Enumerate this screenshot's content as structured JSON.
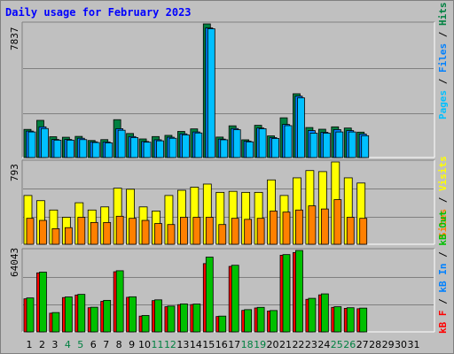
{
  "title": "Daily usage for February 2023",
  "panels": {
    "top_max": "7837",
    "middle_max": "793",
    "bottom_max": "64043"
  },
  "right_labels": {
    "top": [
      "Pages",
      "Files",
      "Hits"
    ],
    "middle": [
      "Sites",
      "Visits"
    ],
    "bottom": [
      "kB F",
      "kB In",
      "kB Out"
    ],
    "separator": " / "
  },
  "colors": {
    "hits": "#008040",
    "files": "#0080ff",
    "pages": "#00c0ff",
    "visits": "#ffff00",
    "sites": "#ff8000",
    "kbf": "#ff0000",
    "kbin": "#0080ff",
    "kbout": "#00c000",
    "weekend_label": "#008040",
    "title": "#0000ff"
  },
  "chart_data": [
    {
      "type": "bar",
      "title": "Daily usage for February 2023",
      "categories": [
        "1",
        "2",
        "3",
        "4",
        "5",
        "6",
        "7",
        "8",
        "9",
        "10",
        "11",
        "12",
        "13",
        "14",
        "15",
        "16",
        "17",
        "18",
        "19",
        "20",
        "21",
        "22",
        "23",
        "24",
        "25",
        "26",
        "27",
        "28",
        "29",
        "30",
        "31"
      ],
      "weekend_days": [
        "4",
        "5",
        "11",
        "12",
        "18",
        "19",
        "25",
        "26"
      ],
      "ylim": [
        0,
        7837
      ],
      "series": [
        {
          "name": "Hits",
          "values": [
            1650,
            2180,
            1220,
            1190,
            1240,
            1000,
            1050,
            2220,
            1410,
            1090,
            1230,
            1300,
            1530,
            1680,
            7837,
            1200,
            1860,
            1040,
            1890,
            1270,
            2330,
            3740,
            1760,
            1660,
            1800,
            1730,
            1490,
            null,
            null,
            null,
            null
          ]
        },
        {
          "name": "Files",
          "values": [
            1550,
            1800,
            1060,
            1060,
            1130,
            920,
            910,
            1690,
            1230,
            940,
            1040,
            1190,
            1390,
            1500,
            7600,
            1080,
            1700,
            960,
            1730,
            1170,
            1940,
            3600,
            1580,
            1480,
            1640,
            1580,
            1380,
            null,
            null,
            null,
            null
          ]
        },
        {
          "name": "Pages",
          "values": [
            1500,
            1700,
            1020,
            1020,
            1050,
            880,
            860,
            1600,
            1170,
            900,
            980,
            1130,
            1330,
            1440,
            7550,
            1040,
            1630,
            920,
            1690,
            1120,
            1870,
            3500,
            1430,
            1430,
            1500,
            1500,
            1280,
            null,
            null,
            null,
            null
          ]
        }
      ]
    },
    {
      "type": "bar",
      "categories": [
        "1",
        "2",
        "3",
        "4",
        "5",
        "6",
        "7",
        "8",
        "9",
        "10",
        "11",
        "12",
        "13",
        "14",
        "15",
        "16",
        "17",
        "18",
        "19",
        "20",
        "21",
        "22",
        "23",
        "24",
        "25",
        "26",
        "27",
        "28",
        "29",
        "30",
        "31"
      ],
      "ylim": [
        0,
        793
      ],
      "series": [
        {
          "name": "Visits",
          "values": [
            470,
            420,
            330,
            260,
            400,
            330,
            360,
            540,
            530,
            360,
            320,
            470,
            520,
            550,
            580,
            500,
            510,
            500,
            500,
            620,
            470,
            640,
            710,
            700,
            793,
            640,
            590,
            null,
            null,
            null,
            null
          ]
        },
        {
          "name": "Sites",
          "values": [
            250,
            230,
            150,
            160,
            260,
            210,
            210,
            270,
            250,
            230,
            200,
            190,
            260,
            260,
            260,
            190,
            250,
            240,
            250,
            320,
            310,
            330,
            370,
            340,
            430,
            260,
            250,
            null,
            null,
            null,
            null
          ]
        }
      ]
    },
    {
      "type": "bar",
      "categories": [
        "1",
        "2",
        "3",
        "4",
        "5",
        "6",
        "7",
        "8",
        "9",
        "10",
        "11",
        "12",
        "13",
        "14",
        "15",
        "16",
        "17",
        "18",
        "19",
        "20",
        "21",
        "22",
        "23",
        "24",
        "25",
        "26",
        "27",
        "28",
        "29",
        "30",
        "31"
      ],
      "ylim": [
        0,
        64043
      ],
      "series": [
        {
          "name": "kB F",
          "values": [
            null,
            null,
            null,
            null,
            null,
            null,
            null,
            null,
            null,
            null,
            null,
            null,
            null,
            null,
            null,
            null,
            null,
            null,
            null,
            null,
            null,
            null,
            null,
            null,
            null,
            null,
            null,
            null,
            null,
            null,
            null
          ]
        },
        {
          "name": "kB In",
          "values": [
            null,
            null,
            null,
            null,
            null,
            null,
            null,
            null,
            null,
            null,
            null,
            null,
            null,
            null,
            null,
            null,
            null,
            null,
            null,
            null,
            null,
            null,
            null,
            null,
            null,
            null,
            null,
            null,
            null,
            null,
            null
          ]
        },
        {
          "name": "kB Out",
          "values": [
            26700,
            47000,
            15200,
            27500,
            29500,
            19400,
            24800,
            48100,
            27600,
            12900,
            25200,
            20300,
            22000,
            21900,
            58800,
            12400,
            52400,
            17500,
            19300,
            16800,
            60800,
            64043,
            26400,
            29900,
            19800,
            19000,
            18700,
            null,
            null,
            null,
            null
          ]
        },
        {
          "name": "kB F",
          "values": [
            26000,
            46400,
            14700,
            27000,
            29000,
            19000,
            24000,
            47300,
            27200,
            12400,
            24600,
            19800,
            21400,
            21500,
            53700,
            12100,
            51500,
            16900,
            18800,
            16400,
            60300,
            62400,
            25600,
            29100,
            19300,
            18500,
            18200,
            null,
            null,
            null,
            null
          ]
        }
      ]
    }
  ]
}
